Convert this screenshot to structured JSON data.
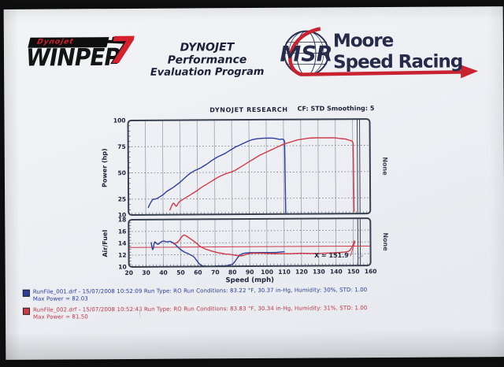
{
  "header": {
    "winpep": {
      "tag": "Dynojet",
      "name": "WINPEP",
      "seven": "7"
    },
    "program_line1": "DYNOJET Performance",
    "program_line2": "Evaluation Program",
    "msr": {
      "initials": "MSR",
      "line1": "Moore",
      "line2": "Speed Racing"
    }
  },
  "chart_data": [
    {
      "type": "line",
      "title": "DYNOJET RESEARCH",
      "cf_label": "CF: STD  Smoothing: 5",
      "ylabel": "Power (hp)",
      "right_label": "None",
      "xlim": [
        20,
        160
      ],
      "ylim": [
        10,
        100
      ],
      "yticks": [
        10,
        25,
        50,
        75,
        100
      ],
      "grid": true,
      "series": [
        {
          "name": "RunFile_001 power",
          "color": "#2e3d9b",
          "points": [
            [
              31.5,
              17
            ],
            [
              32,
              19
            ],
            [
              33,
              22
            ],
            [
              34,
              24.5
            ],
            [
              34.5,
              25
            ],
            [
              35.5,
              25
            ],
            [
              36.5,
              25.5
            ],
            [
              38,
              27
            ],
            [
              40,
              29
            ],
            [
              42,
              32
            ],
            [
              44,
              34
            ],
            [
              46,
              36
            ],
            [
              48,
              38.5
            ],
            [
              50,
              41
            ],
            [
              52,
              44
            ],
            [
              54,
              47
            ],
            [
              56,
              49.5
            ],
            [
              58,
              51.5
            ],
            [
              60,
              53
            ],
            [
              62,
              54.5
            ],
            [
              64,
              56.5
            ],
            [
              66,
              58.5
            ],
            [
              68,
              61
            ],
            [
              70,
              63
            ],
            [
              72,
              65
            ],
            [
              74,
              66.5
            ],
            [
              76,
              68
            ],
            [
              78,
              70
            ],
            [
              80,
              72
            ],
            [
              82,
              74
            ],
            [
              84,
              75.5
            ],
            [
              86,
              77
            ],
            [
              88,
              78.5
            ],
            [
              90,
              80
            ],
            [
              92,
              81
            ],
            [
              94,
              81.7
            ],
            [
              96,
              82
            ],
            [
              98,
              82.3
            ],
            [
              100,
              82.4
            ],
            [
              102,
              82.4
            ],
            [
              104,
              82.3
            ],
            [
              105,
              82
            ],
            [
              106,
              81.7
            ],
            [
              107,
              81.3
            ],
            [
              108,
              81
            ],
            [
              109,
              81.4
            ],
            [
              110,
              81
            ],
            [
              110.6,
              79
            ],
            [
              111,
              11
            ]
          ]
        },
        {
          "name": "RunFile_002 power",
          "color": "#cf3a4a",
          "points": [
            [
              44,
              14.5
            ],
            [
              44.5,
              16.5
            ],
            [
              45,
              18.5
            ],
            [
              45.5,
              20
            ],
            [
              46,
              21
            ],
            [
              46.5,
              20.5
            ],
            [
              47,
              19
            ],
            [
              47.5,
              18.2
            ],
            [
              48,
              18.5
            ],
            [
              48.5,
              20
            ],
            [
              49,
              21.5
            ],
            [
              50,
              23
            ],
            [
              51,
              24
            ],
            [
              52,
              25
            ],
            [
              53,
              26
            ],
            [
              54,
              27
            ],
            [
              55,
              28
            ],
            [
              56,
              29
            ],
            [
              57,
              30
            ],
            [
              58,
              31
            ],
            [
              60,
              33
            ],
            [
              62,
              35.5
            ],
            [
              64,
              37.5
            ],
            [
              66,
              39.5
            ],
            [
              68,
              41.5
            ],
            [
              70,
              43.5
            ],
            [
              72,
              45.5
            ],
            [
              74,
              47
            ],
            [
              76,
              48.5
            ],
            [
              78,
              49.5
            ],
            [
              80,
              50.5
            ],
            [
              82,
              52
            ],
            [
              84,
              54
            ],
            [
              86,
              56
            ],
            [
              88,
              58
            ],
            [
              90,
              60
            ],
            [
              92,
              62
            ],
            [
              94,
              64
            ],
            [
              96,
              66
            ],
            [
              98,
              67.5
            ],
            [
              100,
              69
            ],
            [
              102,
              70.5
            ],
            [
              104,
              72
            ],
            [
              106,
              73.5
            ],
            [
              108,
              75
            ],
            [
              110,
              76.5
            ],
            [
              112,
              77.5
            ],
            [
              114,
              78.5
            ],
            [
              116,
              79.5
            ],
            [
              118,
              80.5
            ],
            [
              120,
              81
            ],
            [
              122,
              81.5
            ],
            [
              124,
              82
            ],
            [
              126,
              82.2
            ],
            [
              128,
              82.3
            ],
            [
              130,
              82.4
            ],
            [
              132,
              82.4
            ],
            [
              134,
              82.3
            ],
            [
              136,
              82.4
            ],
            [
              138,
              82.3
            ],
            [
              140,
              82.2
            ],
            [
              142,
              81.8
            ],
            [
              144,
              81.4
            ],
            [
              146,
              81
            ],
            [
              147,
              80.5
            ],
            [
              148,
              80
            ],
            [
              149,
              79.5
            ],
            [
              149.8,
              79
            ],
            [
              150.3,
              77
            ],
            [
              150.6,
              12
            ]
          ]
        }
      ]
    },
    {
      "type": "line",
      "ylabel": "Air/Fuel",
      "right_label": "None",
      "xlabel": "Speed (mph)",
      "xlim": [
        20,
        160
      ],
      "ylim": [
        10,
        18
      ],
      "xticks": [
        20,
        30,
        40,
        50,
        60,
        70,
        80,
        90,
        100,
        110,
        120,
        130,
        140,
        150,
        160
      ],
      "yticks": [
        10,
        12,
        14,
        16,
        18
      ],
      "grid": true,
      "reference_line": {
        "value": 13.3,
        "color": "#cf3a4a"
      },
      "annotation": {
        "text": "X = 151.9",
        "x": 151.9
      },
      "series": [
        {
          "name": "RunFile_001 air/fuel",
          "color": "#2e3d9b",
          "points": [
            [
              33,
              14.1
            ],
            [
              33.4,
              13.4
            ],
            [
              33.8,
              12.9
            ],
            [
              34.2,
              13.1
            ],
            [
              34.6,
              13.8
            ],
            [
              35,
              14.2
            ],
            [
              35.5,
              14.15
            ],
            [
              36,
              14.0
            ],
            [
              36.5,
              13.85
            ],
            [
              37,
              13.8
            ],
            [
              37.5,
              13.9
            ],
            [
              38,
              14.05
            ],
            [
              39,
              14.25
            ],
            [
              40,
              14.35
            ],
            [
              41,
              14.3
            ],
            [
              42,
              14.2
            ],
            [
              43,
              14.25
            ],
            [
              44,
              14.3
            ],
            [
              45,
              14.15
            ],
            [
              46,
              14.0
            ],
            [
              47,
              13.75
            ],
            [
              48,
              13.45
            ],
            [
              49,
              13.15
            ],
            [
              50,
              12.9
            ],
            [
              51,
              12.7
            ],
            [
              52,
              12.5
            ],
            [
              53,
              12.35
            ],
            [
              54,
              12.25
            ],
            [
              55,
              12.1
            ],
            [
              56,
              11.95
            ],
            [
              57,
              11.8
            ],
            [
              58,
              11.55
            ],
            [
              59,
              11.15
            ],
            [
              60,
              10.75
            ],
            [
              61,
              10.4
            ],
            [
              62,
              10.2
            ],
            [
              63,
              10.1
            ],
            [
              64,
              10.05
            ],
            [
              66,
              10.0
            ],
            [
              68,
              10.0
            ],
            [
              70,
              10.05
            ],
            [
              72,
              10.1
            ],
            [
              74,
              10.1
            ],
            [
              76,
              10.1
            ],
            [
              78,
              10.2
            ],
            [
              80,
              10.35
            ],
            [
              81,
              10.65
            ],
            [
              82,
              11.05
            ],
            [
              83,
              11.45
            ],
            [
              84,
              11.8
            ],
            [
              85,
              12.0
            ],
            [
              86,
              12.15
            ],
            [
              87,
              12.2
            ],
            [
              88,
              12.25
            ],
            [
              90,
              12.3
            ],
            [
              93,
              12.3
            ],
            [
              96,
              12.3
            ],
            [
              99,
              12.3
            ],
            [
              102,
              12.3
            ],
            [
              105,
              12.3
            ],
            [
              107,
              12.35
            ],
            [
              109,
              12.4
            ],
            [
              110,
              12.4
            ]
          ]
        },
        {
          "name": "RunFile_002 air/fuel",
          "color": "#cf3a4a",
          "points": [
            [
              46,
              13.85
            ],
            [
              47,
              13.95
            ],
            [
              48,
              14.1
            ],
            [
              49,
              14.35
            ],
            [
              50,
              14.75
            ],
            [
              51,
              15.15
            ],
            [
              52,
              15.35
            ],
            [
              53,
              15.25
            ],
            [
              54,
              15.05
            ],
            [
              55,
              14.85
            ],
            [
              56,
              14.65
            ],
            [
              57,
              14.45
            ],
            [
              58,
              14.25
            ],
            [
              59,
              14.0
            ],
            [
              60,
              13.75
            ],
            [
              61,
              13.5
            ],
            [
              62,
              13.3
            ],
            [
              63,
              13.15
            ],
            [
              64,
              13.0
            ],
            [
              65,
              12.9
            ],
            [
              66,
              12.8
            ],
            [
              67,
              12.7
            ],
            [
              68,
              12.6
            ],
            [
              70,
              12.45
            ],
            [
              72,
              12.3
            ],
            [
              74,
              12.2
            ],
            [
              76,
              12.1
            ],
            [
              78,
              12.05
            ],
            [
              80,
              11.95
            ],
            [
              82,
              11.85
            ],
            [
              84,
              11.78
            ],
            [
              85,
              11.75
            ],
            [
              86,
              11.8
            ],
            [
              87,
              11.9
            ],
            [
              88,
              12.0
            ],
            [
              89,
              12.1
            ],
            [
              90,
              12.15
            ],
            [
              92,
              12.2
            ],
            [
              95,
              12.2
            ],
            [
              100,
              12.15
            ],
            [
              105,
              12.1
            ],
            [
              110,
              12.1
            ],
            [
              115,
              12.1
            ],
            [
              120,
              12.15
            ],
            [
              125,
              12.1
            ],
            [
              130,
              12.1
            ],
            [
              135,
              12.15
            ],
            [
              140,
              12.2
            ],
            [
              143,
              12.25
            ],
            [
              145,
              12.3
            ],
            [
              147,
              12.4
            ],
            [
              148,
              12.6
            ],
            [
              149,
              13.0
            ],
            [
              150,
              13.6
            ],
            [
              150.7,
              14.2
            ]
          ]
        }
      ]
    }
  ],
  "legend": {
    "runs": [
      {
        "color": "#2e3d9b",
        "line1": "RunFile_001.drf - 15/07/2008 10:52:09  Run Type: RO  Run Conditions: 83.22 °F, 30.37 in-Hg,  Humidity: 30%, STD: 1.00",
        "line2": "Max Power = 82.03"
      },
      {
        "color": "#cf3a4a",
        "line1": "RunFile_002.drf - 15/07/2008 10:52:43  Run Type: RO  Run Conditions: 83.83 °F, 30.34 in-Hg,  Humidity: 31%, STD: 1.00",
        "line2": "Max Power = 81.50"
      }
    ]
  }
}
